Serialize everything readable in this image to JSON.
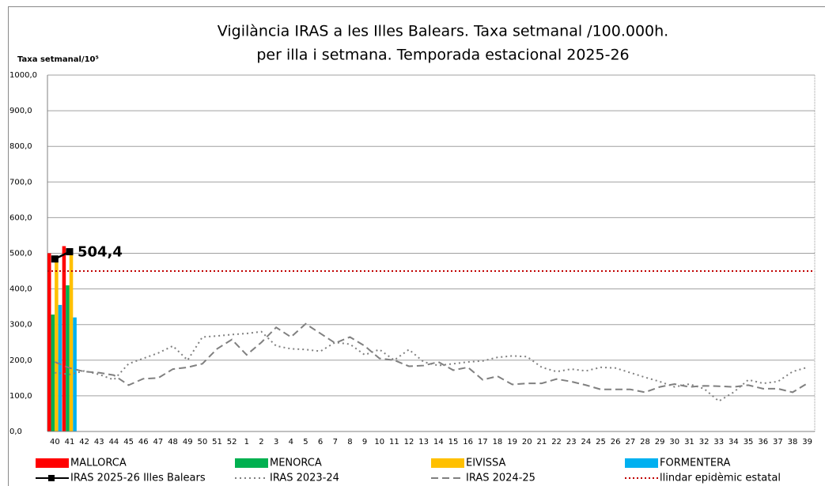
{
  "chart_data": {
    "type": "bar",
    "title": "Vigilància IRAS a les Illes Balears.  Taxa setmanal /100.000h.",
    "subtitle": "per illa i setmana. Temporada estacional 2025-26",
    "y_label": "Taxa setmanal/10⁵",
    "categories": [
      "40",
      "41",
      "42",
      "43",
      "44",
      "45",
      "46",
      "47",
      "48",
      "49",
      "50",
      "51",
      "52",
      "1",
      "2",
      "3",
      "4",
      "5",
      "6",
      "7",
      "8",
      "9",
      "10",
      "11",
      "12",
      "13",
      "14",
      "15",
      "16",
      "17",
      "18",
      "19",
      "20",
      "21",
      "22",
      "23",
      "24",
      "25",
      "26",
      "27",
      "28",
      "29",
      "30",
      "31",
      "32",
      "33",
      "34",
      "35",
      "36",
      "37",
      "38",
      "39"
    ],
    "ylim": [
      0,
      1000
    ],
    "yticks": [
      {
        "value": 0,
        "label": "0,0"
      },
      {
        "value": 100,
        "label": "100,0"
      },
      {
        "value": 200,
        "label": "200,0"
      },
      {
        "value": 300,
        "label": "300,0"
      },
      {
        "value": 400,
        "label": "400,0"
      },
      {
        "value": 500,
        "label": "500,0"
      },
      {
        "value": 600,
        "label": "600,0"
      },
      {
        "value": 700,
        "label": "700,0"
      },
      {
        "value": 800,
        "label": "800,0"
      },
      {
        "value": 900,
        "label": "900,0"
      },
      {
        "value": 1000,
        "label": "1000,0"
      }
    ],
    "grid": true,
    "series": [
      {
        "name": "MALLORCA",
        "color": "#ff0000",
        "style": "bar",
        "values": [
          500,
          520,
          null,
          null,
          null,
          null,
          null,
          null,
          null,
          null,
          null,
          null,
          null,
          null,
          null,
          null,
          null,
          null,
          null,
          null,
          null,
          null,
          null,
          null,
          null,
          null,
          null,
          null,
          null,
          null,
          null,
          null,
          null,
          null,
          null,
          null,
          null,
          null,
          null,
          null,
          null,
          null,
          null,
          null,
          null,
          null,
          null,
          null,
          null,
          null,
          null,
          null
        ]
      },
      {
        "name": "MENORCA",
        "color": "#00b050",
        "style": "bar",
        "values": [
          328,
          410,
          null,
          null,
          null,
          null,
          null,
          null,
          null,
          null,
          null,
          null,
          null,
          null,
          null,
          null,
          null,
          null,
          null,
          null,
          null,
          null,
          null,
          null,
          null,
          null,
          null,
          null,
          null,
          null,
          null,
          null,
          null,
          null,
          null,
          null,
          null,
          null,
          null,
          null,
          null,
          null,
          null,
          null,
          null,
          null,
          null,
          null,
          null,
          null,
          null,
          null
        ]
      },
      {
        "name": "EIVISSA",
        "color": "#ffc000",
        "style": "bar",
        "values": [
          475,
          500,
          null,
          null,
          null,
          null,
          null,
          null,
          null,
          null,
          null,
          null,
          null,
          null,
          null,
          null,
          null,
          null,
          null,
          null,
          null,
          null,
          null,
          null,
          null,
          null,
          null,
          null,
          null,
          null,
          null,
          null,
          null,
          null,
          null,
          null,
          null,
          null,
          null,
          null,
          null,
          null,
          null,
          null,
          null,
          null,
          null,
          null,
          null,
          null,
          null,
          null
        ]
      },
      {
        "name": "FORMENTERA",
        "color": "#00b0f0",
        "style": "bar",
        "values": [
          355,
          320,
          null,
          null,
          null,
          null,
          null,
          null,
          null,
          null,
          null,
          null,
          null,
          null,
          null,
          null,
          null,
          null,
          null,
          null,
          null,
          null,
          null,
          null,
          null,
          null,
          null,
          null,
          null,
          null,
          null,
          null,
          null,
          null,
          null,
          null,
          null,
          null,
          null,
          null,
          null,
          null,
          null,
          null,
          null,
          null,
          null,
          null,
          null,
          null,
          null,
          null
        ]
      },
      {
        "name": "IRAS 2025-26 Illes Balears",
        "color": "#000000",
        "style": "marker",
        "values": [
          484,
          504.4,
          null,
          null,
          null,
          null,
          null,
          null,
          null,
          null,
          null,
          null,
          null,
          null,
          null,
          null,
          null,
          null,
          null,
          null,
          null,
          null,
          null,
          null,
          null,
          null,
          null,
          null,
          null,
          null,
          null,
          null,
          null,
          null,
          null,
          null,
          null,
          null,
          null,
          null,
          null,
          null,
          null,
          null,
          null,
          null,
          null,
          null,
          null,
          null,
          null,
          null
        ],
        "value_labels": [
          null,
          "504,4",
          null,
          null,
          null,
          null,
          null,
          null,
          null,
          null,
          null,
          null,
          null,
          null,
          null,
          null,
          null,
          null,
          null,
          null,
          null,
          null,
          null,
          null,
          null,
          null,
          null,
          null,
          null,
          null,
          null,
          null,
          null,
          null,
          null,
          null,
          null,
          null,
          null,
          null,
          null,
          null,
          null,
          null,
          null,
          null,
          null,
          null,
          null,
          null,
          null,
          null
        ]
      },
      {
        "name": "IRAS 2023-24",
        "color": "#808080",
        "style": "dotted",
        "values": [
          165,
          160,
          170,
          160,
          145,
          190,
          205,
          220,
          240,
          200,
          265,
          268,
          272,
          275,
          280,
          240,
          232,
          230,
          225,
          250,
          245,
          215,
          230,
          200,
          230,
          195,
          185,
          190,
          195,
          198,
          208,
          212,
          210,
          180,
          168,
          175,
          170,
          180,
          178,
          165,
          152,
          140,
          125,
          133,
          120,
          85,
          110,
          145,
          135,
          140,
          168,
          180
        ]
      },
      {
        "name": "IRAS 2024-25",
        "color": "#808080",
        "style": "dashed",
        "values": [
          195,
          178,
          168,
          165,
          158,
          130,
          148,
          150,
          175,
          180,
          190,
          232,
          258,
          215,
          250,
          292,
          265,
          302,
          275,
          248,
          265,
          240,
          205,
          200,
          183,
          185,
          195,
          172,
          180,
          145,
          155,
          132,
          135,
          135,
          147,
          140,
          130,
          118,
          118,
          118,
          110,
          125,
          133,
          125,
          128,
          127,
          125,
          130,
          120,
          120,
          110,
          135
        ]
      }
    ],
    "threshold": {
      "name": "llindar epidèmic estatal",
      "value": 450,
      "color": "#c00000"
    }
  }
}
